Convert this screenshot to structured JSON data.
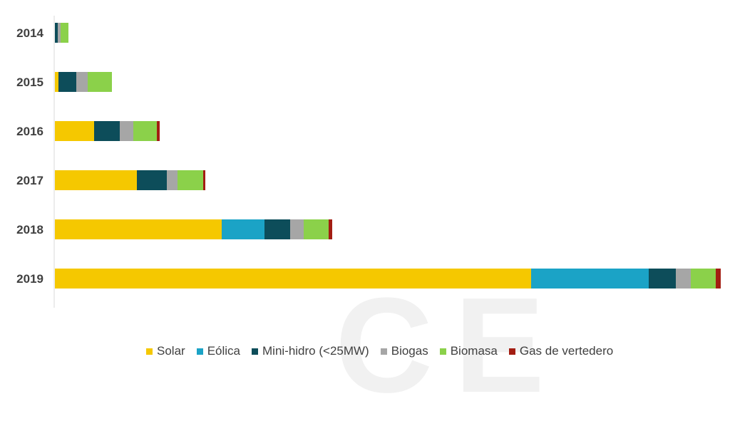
{
  "chart_data": {
    "type": "bar",
    "orientation": "horizontal",
    "stacked": true,
    "categories": [
      "2014",
      "2015",
      "2016",
      "2017",
      "2018",
      "2019"
    ],
    "series": [
      {
        "name": "Solar",
        "color": "#F5C800",
        "values": [
          0,
          5,
          55,
          115,
          234,
          668
        ]
      },
      {
        "name": "Eólica",
        "color": "#1BA3C6",
        "values": [
          0,
          0,
          0,
          0,
          60,
          165
        ]
      },
      {
        "name": "Mini-hidro (<25MW)",
        "color": "#0D4D5A",
        "values": [
          4,
          25,
          36,
          42,
          36,
          38
        ]
      },
      {
        "name": "Biogas",
        "color": "#A6A6A6",
        "values": [
          4,
          16,
          19,
          15,
          19,
          21
        ]
      },
      {
        "name": "Biomasa",
        "color": "#8BD14A",
        "values": [
          11,
          34,
          33,
          36,
          35,
          35
        ]
      },
      {
        "name": "Gas de vertedero",
        "color": "#A31D12",
        "values": [
          0,
          0,
          4,
          3,
          5,
          7
        ]
      }
    ],
    "xlim": [
      0,
      940
    ],
    "grid": false,
    "legend_position": "bottom"
  }
}
